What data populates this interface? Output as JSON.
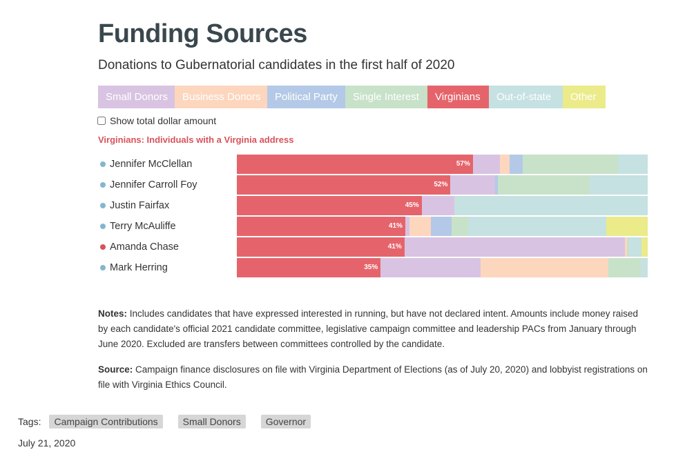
{
  "header": {
    "title": "Funding Sources",
    "subtitle": "Donations to Gubernatorial candidates in the first half of 2020"
  },
  "legend": [
    {
      "label": "Small Donors",
      "color": "#d9c3e2"
    },
    {
      "label": "Business Donors",
      "color": "#fdd6be"
    },
    {
      "label": "Political Party",
      "color": "#b4c9e7"
    },
    {
      "label": "Single Interest",
      "color": "#c7e2c8"
    },
    {
      "label": "Virginians",
      "color": "#e5646b",
      "active": true
    },
    {
      "label": "Out-of-state",
      "color": "#c5e1e2"
    },
    {
      "label": "Other",
      "color": "#ebeb8a"
    }
  ],
  "toggle": {
    "label": "Show total dollar amount",
    "checked": false
  },
  "definition": "Virginians: Individuals with a Virginia address",
  "chart_data": {
    "type": "bar",
    "orientation": "horizontal",
    "stacked": true,
    "categories": [
      "Jennifer McClellan",
      "Jennifer Carroll Foy",
      "Justin Fairfax",
      "Terry McAuliffe",
      "Amanda Chase",
      "Mark Herring"
    ],
    "category_dot_colors": [
      "#84b6cf",
      "#84b6cf",
      "#84b6cf",
      "#84b6cf",
      "#d9525a",
      "#84b6cf"
    ],
    "series": [
      {
        "name": "Virginians",
        "color": "#e5646b",
        "values": [
          57,
          52,
          45,
          41,
          41,
          35
        ],
        "labels": [
          "57%",
          "52%",
          "45%",
          "41%",
          "41%",
          "35%"
        ]
      },
      {
        "name": "Small Donors",
        "color": "#d9c3e2",
        "values": [
          6.6,
          10.9,
          7.9,
          1,
          54,
          24.4
        ]
      },
      {
        "name": "Business Donors",
        "color": "#fdd6be",
        "values": [
          2.3,
          0,
          0,
          5.3,
          0.5,
          31
        ]
      },
      {
        "name": "Political Party",
        "color": "#b4c9e7",
        "values": [
          3.2,
          0.7,
          0,
          5,
          0,
          0
        ]
      },
      {
        "name": "Single Interest",
        "color": "#c7e2c8",
        "values": [
          22.9,
          22.3,
          0,
          4,
          0.4,
          8
        ]
      },
      {
        "name": "Out-of-state",
        "color": "#c5e1e2",
        "values": [
          7.2,
          14.1,
          47.1,
          33.7,
          3.1,
          1.6
        ]
      },
      {
        "name": "Other",
        "color": "#ebeb8a",
        "values": [
          0,
          0,
          0,
          10,
          1.5,
          0
        ]
      }
    ]
  },
  "notes": {
    "label": "Notes:",
    "text": " Includes candidates that have expressed interested in running, but have not declared intent. Amounts include money raised by each candidate's official 2021 candidate committee, legislative campaign committee and leadership PACs from January through June 2020. Excluded are transfers between committees controlled by the candidate."
  },
  "source": {
    "label": "Source:",
    "text": " Campaign finance disclosures on file with Virginia Department of Elections (as of July 20, 2020) and lobbyist registrations on file with Virginia Ethics Council."
  },
  "tags": {
    "label": "Tags:",
    "items": [
      "Campaign Contributions",
      "Small Donors",
      "Governor"
    ]
  },
  "date": "July 21, 2020"
}
